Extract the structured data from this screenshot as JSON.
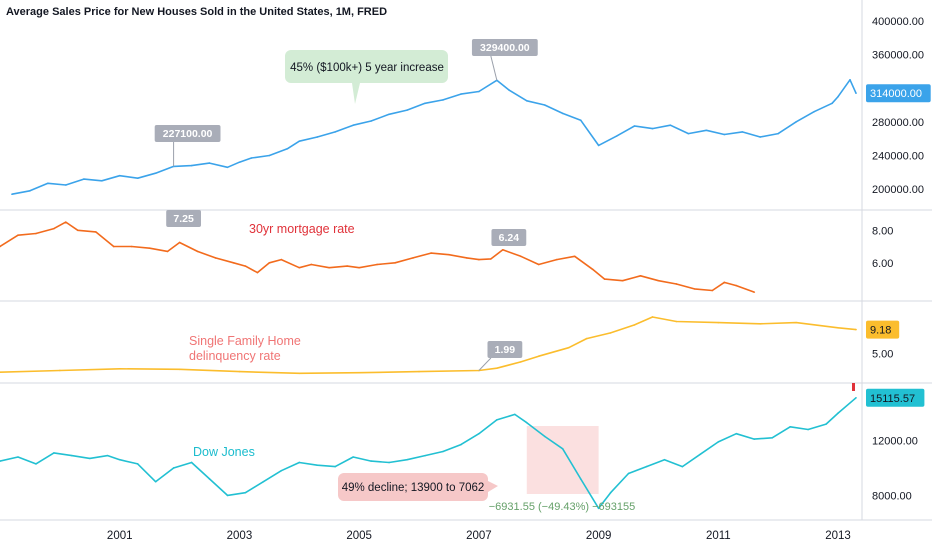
{
  "header": {
    "title": "Average Sales Price for New Houses Sold in the United States, 1M, FRED"
  },
  "colors": {
    "price": "#3ba3ea",
    "mortgage": "#f26b1d",
    "delinquency": "#fbbd2d",
    "dow": "#22c0d2",
    "grid": "#e6e8ee",
    "axis_text": "#131722",
    "badge_gray": "#a9adb8",
    "green_note": "#d3ecd5",
    "red_note": "#f6c8c8",
    "red_text": "#e0323a",
    "decline_text": "#66a16a",
    "shade": "#fbe0e0"
  },
  "chart_data": [
    {
      "type": "line",
      "name": "price",
      "series": [
        {
          "name": "Average Sales Price for New Houses Sold in the United States",
          "color": "#3ba3ea"
        }
      ],
      "x": [
        1999.2,
        1999.5,
        1999.8,
        2000.1,
        2000.4,
        2000.7,
        2001.0,
        2001.3,
        2001.6,
        2001.9,
        2002.2,
        2002.5,
        2002.8,
        2003.0,
        2003.2,
        2003.5,
        2003.8,
        2004.0,
        2004.3,
        2004.6,
        2004.9,
        2005.2,
        2005.5,
        2005.8,
        2006.1,
        2006.4,
        2006.7,
        2007.0,
        2007.3,
        2007.5,
        2007.8,
        2008.1,
        2008.4,
        2008.7,
        2009.0,
        2009.3,
        2009.6,
        2009.9,
        2010.2,
        2010.5,
        2010.8,
        2011.1,
        2011.4,
        2011.7,
        2012.0,
        2012.3,
        2012.6,
        2012.9,
        2013.0,
        2013.2,
        2013.3
      ],
      "y": [
        194000,
        198000,
        207000,
        205000,
        212000,
        210000,
        216000,
        213000,
        219000,
        227100,
        228000,
        231000,
        226000,
        232000,
        237000,
        240000,
        248000,
        257000,
        262000,
        268000,
        276000,
        281000,
        289000,
        294000,
        302000,
        306000,
        313000,
        316000,
        329400,
        318000,
        305000,
        300000,
        290000,
        282000,
        252000,
        263000,
        275000,
        272000,
        276000,
        266000,
        270000,
        265000,
        268000,
        262000,
        266000,
        280000,
        292000,
        302000,
        310000,
        330000,
        314000
      ],
      "ylim": [
        180000,
        420000
      ],
      "yticks": [
        "200000.00",
        "240000.00",
        "280000.00",
        "320000.00",
        "360000.00",
        "400000.00"
      ],
      "last_value": "314000.00",
      "annotations": [
        {
          "label": "227100.00",
          "x": 2001.9,
          "y": 227100
        },
        {
          "label": "329400.00",
          "x": 2007.3,
          "y": 329400
        }
      ],
      "note": "45% ($100k+) 5 year increase"
    },
    {
      "type": "line",
      "name": "mortgage",
      "title": "30yr mortgage rate",
      "x": [
        1999.0,
        1999.3,
        1999.6,
        1999.9,
        2000.1,
        2000.3,
        2000.6,
        2000.9,
        2001.2,
        2001.5,
        2001.8,
        2002.0,
        2002.3,
        2002.6,
        2002.9,
        2003.1,
        2003.3,
        2003.5,
        2003.7,
        2004.0,
        2004.2,
        2004.5,
        2004.8,
        2005.0,
        2005.3,
        2005.6,
        2005.9,
        2006.2,
        2006.5,
        2006.8,
        2007.0,
        2007.2,
        2007.4,
        2007.7,
        2008.0,
        2008.3,
        2008.6,
        2008.9,
        2009.1,
        2009.4,
        2009.7,
        2010.0,
        2010.3,
        2010.6,
        2010.9,
        2011.1,
        2011.3,
        2011.6
      ],
      "y": [
        7.0,
        7.7,
        7.8,
        8.1,
        8.5,
        8.0,
        7.9,
        7.0,
        7.0,
        6.9,
        6.7,
        7.25,
        6.7,
        6.3,
        6.0,
        5.8,
        5.4,
        6.0,
        6.2,
        5.7,
        5.9,
        5.7,
        5.8,
        5.7,
        5.9,
        6.0,
        6.3,
        6.6,
        6.5,
        6.3,
        6.2,
        6.24,
        6.8,
        6.4,
        5.9,
        6.2,
        6.4,
        5.6,
        5.0,
        4.9,
        5.2,
        4.9,
        4.7,
        4.4,
        4.3,
        4.8,
        4.6,
        4.2
      ],
      "ylim": [
        3.9,
        9.0
      ],
      "yticks": [
        "6.00",
        "8.00"
      ],
      "annotations": [
        {
          "label": "7.25",
          "x": 2001.9,
          "y": 7.25
        },
        {
          "label": "6.24",
          "x": 2007.2,
          "y": 6.24
        }
      ]
    },
    {
      "type": "line",
      "name": "delinquency",
      "title": "Single Family Home delinquency rate",
      "title_lines": [
        "Single Family Home",
        "delinquency rate"
      ],
      "x": [
        1999.0,
        2000.0,
        2001.0,
        2002.0,
        2003.0,
        2004.0,
        2005.0,
        2006.0,
        2007.0,
        2007.3,
        2007.7,
        2008.0,
        2008.5,
        2008.8,
        2009.2,
        2009.6,
        2009.9,
        2010.3,
        2011.0,
        2011.7,
        2012.3,
        2013.0,
        2013.3
      ],
      "y": [
        1.7,
        2.0,
        2.3,
        2.2,
        1.8,
        1.5,
        1.6,
        1.8,
        1.99,
        2.4,
        3.5,
        4.5,
        6.0,
        7.6,
        8.6,
        10.0,
        11.4,
        10.6,
        10.4,
        10.2,
        10.4,
        9.5,
        9.18
      ],
      "ylim": [
        0.5,
        13.5
      ],
      "yticks": [
        "5.00"
      ],
      "last_value": "9.18",
      "annotations": [
        {
          "label": "1.99",
          "x": 2007.0,
          "y": 1.99
        }
      ]
    },
    {
      "type": "line",
      "name": "dow",
      "title": "Dow Jones",
      "unit": "USD",
      "x": [
        1999.0,
        1999.3,
        1999.6,
        1999.9,
        2000.2,
        2000.5,
        2000.8,
        2001.0,
        2001.3,
        2001.6,
        2001.9,
        2002.2,
        2002.5,
        2002.8,
        2003.1,
        2003.4,
        2003.7,
        2004.0,
        2004.3,
        2004.6,
        2004.9,
        2005.2,
        2005.5,
        2005.8,
        2006.1,
        2006.4,
        2006.7,
        2007.0,
        2007.3,
        2007.6,
        2007.8,
        2008.1,
        2008.4,
        2008.7,
        2009.0,
        2009.2,
        2009.5,
        2009.8,
        2010.1,
        2010.4,
        2010.7,
        2011.0,
        2011.3,
        2011.6,
        2011.9,
        2012.2,
        2012.5,
        2012.8,
        2013.0,
        2013.3
      ],
      "y": [
        10500,
        10800,
        10300,
        11100,
        10900,
        10700,
        10900,
        10600,
        10300,
        9000,
        10000,
        10400,
        9200,
        8000,
        8200,
        9000,
        9800,
        10400,
        10200,
        10100,
        10800,
        10500,
        10400,
        10600,
        10900,
        11200,
        11700,
        12500,
        13500,
        13900,
        13300,
        12300,
        11400,
        9200,
        7062,
        8200,
        9600,
        10100,
        10600,
        10100,
        11000,
        11900,
        12500,
        12100,
        12200,
        13000,
        12800,
        13200,
        14000,
        15115.57
      ],
      "ylim": [
        6500,
        15900
      ],
      "yticks": [
        "8000.00",
        "12000.00"
      ],
      "last_value": "15115.57",
      "shade_x": [
        2007.8,
        2009.0
      ],
      "decline_label": "−6931.55 (−49.43%) −693155",
      "note": "49% decline; 13900 to 7062"
    }
  ],
  "x_axis": {
    "range": [
      1999.0,
      2013.4
    ],
    "ticks": [
      {
        "label": "2001",
        "x": 2001.0
      },
      {
        "label": "2003",
        "x": 2003.0
      },
      {
        "label": "2005",
        "x": 2005.0
      },
      {
        "label": "2007",
        "x": 2007.0
      },
      {
        "label": "2009",
        "x": 2009.0
      },
      {
        "label": "2011",
        "x": 2011.0
      },
      {
        "label": "2013",
        "x": 2013.0
      }
    ]
  }
}
